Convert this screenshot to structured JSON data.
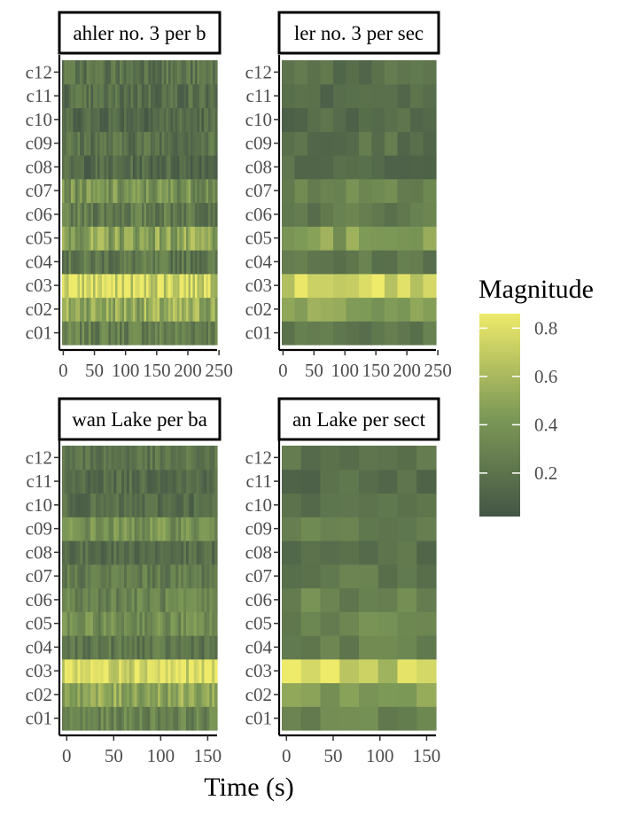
{
  "chart_data": {
    "type": "heatmap",
    "xlabel": "Time (s)",
    "ylabel": "",
    "colorbar": {
      "title": "Magnitude",
      "ticks": [
        0.2,
        0.4,
        0.6,
        0.8
      ],
      "range": [
        0.02,
        0.86
      ],
      "low_color": "#435645",
      "mid_color": "#7e9a57",
      "high_color": "#eeea6a"
    },
    "rows": [
      "c01",
      "c02",
      "c03",
      "c04",
      "c05",
      "c06",
      "c07",
      "c08",
      "c09",
      "c10",
      "c11",
      "c12"
    ],
    "panels": [
      {
        "strip": "ahler no. 3 per b",
        "xlim": [
          -2,
          247
        ],
        "xticks": [
          0,
          50,
          100,
          150,
          200,
          250
        ],
        "cols": 70,
        "row_levels": [
          0.28,
          0.52,
          0.8,
          0.22,
          0.48,
          0.25,
          0.38,
          0.14,
          0.2,
          0.15,
          0.17,
          0.2
        ],
        "variability": 0.22
      },
      {
        "strip": "ler no. 3 per sec",
        "xlim": [
          -2,
          247
        ],
        "xticks": [
          0,
          50,
          100,
          150,
          200,
          250
        ],
        "cols": 12,
        "row_levels": [
          0.24,
          0.45,
          0.72,
          0.22,
          0.45,
          0.24,
          0.32,
          0.15,
          0.2,
          0.14,
          0.14,
          0.18
        ],
        "variability": 0.14
      },
      {
        "strip": "wan Lake per ba",
        "xlim": [
          -5,
          160
        ],
        "xticks": [
          0,
          50,
          100,
          150
        ],
        "cols": 60,
        "row_levels": [
          0.3,
          0.5,
          0.82,
          0.22,
          0.35,
          0.3,
          0.25,
          0.16,
          0.38,
          0.16,
          0.16,
          0.2
        ],
        "variability": 0.18
      },
      {
        "strip": "an Lake per sect",
        "xlim": [
          -5,
          160
        ],
        "xticks": [
          0,
          50,
          100,
          150
        ],
        "cols": 8,
        "row_levels": [
          0.3,
          0.45,
          0.72,
          0.28,
          0.32,
          0.3,
          0.26,
          0.18,
          0.3,
          0.16,
          0.16,
          0.2
        ],
        "variability": 0.14
      }
    ]
  }
}
